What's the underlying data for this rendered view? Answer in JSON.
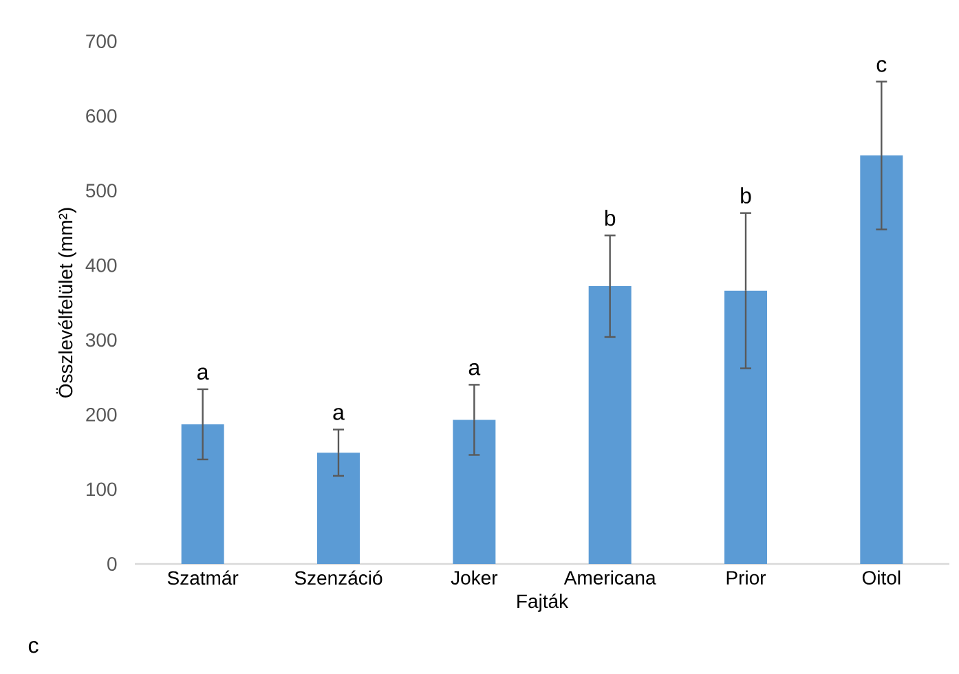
{
  "chart_data": {
    "type": "bar",
    "xlabel": "Fajták",
    "ylabel": "Összlevélfelület (mm²)",
    "categories": [
      "Szatmár",
      "Szenzáció",
      "Joker",
      "Americana",
      "Prior",
      "Oitol"
    ],
    "values": [
      187,
      149,
      193,
      372,
      366,
      547
    ],
    "errors": [
      47,
      31,
      47,
      68,
      104,
      99
    ],
    "color": "#5b9bd5",
    "ylim": [
      0,
      700
    ],
    "yticks": [
      0,
      100,
      200,
      300,
      400,
      500,
      600,
      700
    ],
    "grid": false,
    "annotations": [
      {
        "text": "a",
        "x": "Szatmár",
        "y": 234
      },
      {
        "text": "a",
        "x": "Szenzáció",
        "y": 180
      },
      {
        "text": "a",
        "x": "Joker",
        "y": 240
      },
      {
        "text": "b",
        "x": "Americana",
        "y": 440
      },
      {
        "text": "b",
        "x": "Prior",
        "y": 470
      },
      {
        "text": "c",
        "x": "Oitol",
        "y": 646
      },
      "c"
    ]
  }
}
